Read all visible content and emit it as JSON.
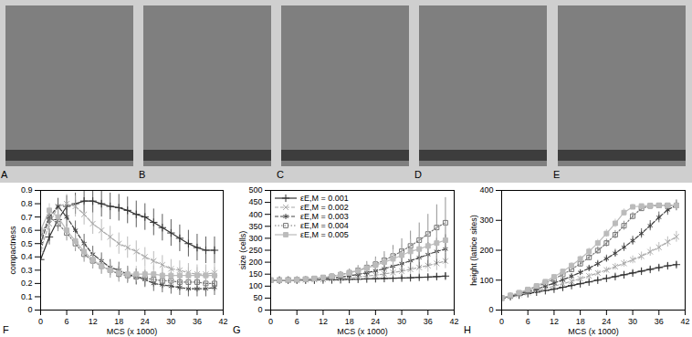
{
  "panels": [
    "A",
    "B",
    "C",
    "D",
    "E"
  ],
  "chart_data": [
    {
      "type": "line",
      "annotations": [
        "F"
      ],
      "xlabel": "MCS (x 1000)",
      "ylabel": "compactness",
      "x": [
        0,
        2,
        4,
        6,
        8,
        10,
        12,
        14,
        16,
        18,
        20,
        22,
        24,
        26,
        28,
        30,
        32,
        34,
        36,
        38,
        40
      ],
      "xlim": [
        0,
        42
      ],
      "xticks": [
        0,
        6,
        12,
        18,
        24,
        30,
        36,
        42
      ],
      "ylim": [
        0,
        0.9
      ],
      "yticks": [
        0,
        0.1,
        0.2,
        0.3,
        0.4,
        0.5,
        0.6,
        0.7,
        0.8,
        0.9
      ],
      "grid": false,
      "series": [
        {
          "name": "εE,M = 0.001",
          "color": "#333333",
          "marker": "plus",
          "line_style": "solid",
          "values": [
            0.38,
            0.55,
            0.68,
            0.78,
            0.8,
            0.82,
            0.82,
            0.8,
            0.78,
            0.77,
            0.75,
            0.72,
            0.7,
            0.66,
            0.62,
            0.58,
            0.54,
            0.5,
            0.47,
            0.45,
            0.45
          ],
          "errors": [
            0.04,
            0.06,
            0.07,
            0.08,
            0.08,
            0.09,
            0.09,
            0.1,
            0.1,
            0.1,
            0.1,
            0.1,
            0.1,
            0.1,
            0.1,
            0.1,
            0.1,
            0.1,
            0.1,
            0.1,
            0.1
          ]
        },
        {
          "name": "εE,M = 0.002",
          "color": "#aaaaaa",
          "marker": "x",
          "line_style": "dashed",
          "values": [
            0.45,
            0.65,
            0.78,
            0.8,
            0.78,
            0.72,
            0.65,
            0.6,
            0.55,
            0.5,
            0.47,
            0.44,
            0.4,
            0.37,
            0.34,
            0.31,
            0.3,
            0.28,
            0.27,
            0.27,
            0.28
          ],
          "errors": [
            0.04,
            0.05,
            0.06,
            0.07,
            0.08,
            0.08,
            0.08,
            0.08,
            0.08,
            0.08,
            0.08,
            0.08,
            0.07,
            0.07,
            0.07,
            0.07,
            0.07,
            0.07,
            0.07,
            0.07,
            0.07
          ]
        },
        {
          "name": "εE,M = 0.003",
          "color": "#444444",
          "marker": "asterisk",
          "line_style": "dashed",
          "values": [
            0.5,
            0.7,
            0.78,
            0.7,
            0.6,
            0.5,
            0.42,
            0.37,
            0.32,
            0.3,
            0.27,
            0.25,
            0.23,
            0.2,
            0.19,
            0.18,
            0.17,
            0.16,
            0.16,
            0.16,
            0.17
          ],
          "errors": [
            0.04,
            0.05,
            0.06,
            0.07,
            0.07,
            0.07,
            0.06,
            0.06,
            0.06,
            0.06,
            0.06,
            0.06,
            0.06,
            0.06,
            0.06,
            0.06,
            0.06,
            0.06,
            0.06,
            0.06,
            0.06
          ]
        },
        {
          "name": "εE,M = 0.004",
          "color": "#777777",
          "marker": "open_square",
          "line_style": "dotted",
          "values": [
            0.55,
            0.7,
            0.65,
            0.58,
            0.5,
            0.42,
            0.37,
            0.33,
            0.3,
            0.27,
            0.26,
            0.25,
            0.24,
            0.23,
            0.22,
            0.22,
            0.21,
            0.21,
            0.21,
            0.2,
            0.2
          ],
          "errors": [
            0.04,
            0.05,
            0.06,
            0.06,
            0.06,
            0.06,
            0.06,
            0.06,
            0.06,
            0.06,
            0.06,
            0.06,
            0.06,
            0.06,
            0.06,
            0.06,
            0.06,
            0.06,
            0.06,
            0.06,
            0.06
          ]
        },
        {
          "name": "εE,M = 0.005",
          "color": "#bbbbbb",
          "marker": "filled_square",
          "line_style": "solid",
          "values": [
            0.6,
            0.75,
            0.7,
            0.6,
            0.52,
            0.44,
            0.38,
            0.33,
            0.3,
            0.28,
            0.27,
            0.27,
            0.27,
            0.27,
            0.26,
            0.26,
            0.26,
            0.26,
            0.26,
            0.26,
            0.26
          ],
          "errors": [
            0.04,
            0.05,
            0.06,
            0.06,
            0.06,
            0.06,
            0.06,
            0.06,
            0.06,
            0.06,
            0.06,
            0.06,
            0.06,
            0.06,
            0.06,
            0.06,
            0.06,
            0.06,
            0.06,
            0.06,
            0.06
          ]
        }
      ]
    },
    {
      "type": "line",
      "annotations": [
        "G"
      ],
      "xlabel": "MCS (x 1000)",
      "ylabel": "size (cells)",
      "legend": "top-left",
      "x": [
        0,
        2,
        4,
        6,
        8,
        10,
        12,
        14,
        16,
        18,
        20,
        22,
        24,
        26,
        28,
        30,
        32,
        34,
        36,
        38,
        40
      ],
      "xlim": [
        0,
        42
      ],
      "xticks": [
        0,
        6,
        12,
        18,
        24,
        30,
        36,
        42
      ],
      "ylim": [
        0,
        500
      ],
      "yticks": [
        0,
        50,
        100,
        150,
        200,
        250,
        300,
        350,
        400,
        450,
        500
      ],
      "grid": false,
      "series": [
        {
          "name": "εE,M = 0.001",
          "color": "#333333",
          "marker": "plus",
          "line_style": "solid",
          "values": [
            125,
            125,
            125,
            125,
            125,
            125,
            126,
            126,
            127,
            128,
            129,
            130,
            131,
            132,
            133,
            134,
            135,
            137,
            138,
            140,
            142
          ],
          "errors": [
            2,
            2,
            2,
            2,
            2,
            3,
            3,
            3,
            4,
            4,
            5,
            5,
            6,
            6,
            7,
            8,
            8,
            9,
            10,
            12,
            14
          ]
        },
        {
          "name": "εE,M = 0.002",
          "color": "#aaaaaa",
          "marker": "x",
          "line_style": "dashed",
          "values": [
            125,
            125,
            125,
            125,
            126,
            127,
            128,
            130,
            132,
            135,
            138,
            142,
            146,
            151,
            157,
            163,
            170,
            178,
            186,
            195,
            205
          ],
          "errors": [
            2,
            2,
            2,
            3,
            3,
            4,
            5,
            6,
            7,
            8,
            10,
            12,
            14,
            16,
            18,
            20,
            22,
            25,
            28,
            30,
            32
          ]
        },
        {
          "name": "εE,M = 0.003",
          "color": "#444444",
          "marker": "asterisk",
          "line_style": "dashed",
          "values": [
            125,
            125,
            125,
            126,
            127,
            129,
            131,
            134,
            138,
            143,
            149,
            156,
            164,
            173,
            183,
            194,
            206,
            219,
            232,
            245,
            255
          ],
          "errors": [
            2,
            2,
            2,
            3,
            4,
            5,
            6,
            8,
            10,
            12,
            15,
            18,
            22,
            26,
            30,
            35,
            40,
            45,
            50,
            55,
            60
          ]
        },
        {
          "name": "εE,M = 0.004",
          "color": "#777777",
          "marker": "open_square",
          "line_style": "dotted",
          "values": [
            125,
            125,
            126,
            127,
            129,
            132,
            136,
            141,
            148,
            156,
            166,
            178,
            192,
            208,
            226,
            246,
            268,
            292,
            318,
            345,
            365
          ],
          "errors": [
            2,
            2,
            3,
            4,
            5,
            6,
            8,
            10,
            13,
            16,
            20,
            25,
            30,
            36,
            44,
            52,
            62,
            72,
            82,
            95,
            105
          ]
        },
        {
          "name": "εE,M = 0.005",
          "color": "#bbbbbb",
          "marker": "filled_square",
          "line_style": "solid",
          "values": [
            125,
            125,
            126,
            127,
            129,
            132,
            136,
            141,
            147,
            155,
            164,
            175,
            187,
            200,
            214,
            229,
            245,
            255,
            268,
            280,
            292
          ],
          "errors": [
            2,
            2,
            3,
            4,
            5,
            6,
            8,
            10,
            12,
            15,
            18,
            22,
            27,
            32,
            38,
            44,
            50,
            56,
            62,
            68,
            75
          ]
        }
      ]
    },
    {
      "type": "line",
      "annotations": [
        "H"
      ],
      "xlabel": "MCS (x 1000)",
      "ylabel": "height (lattice sites)",
      "x": [
        0,
        2,
        4,
        6,
        8,
        10,
        12,
        14,
        16,
        18,
        20,
        22,
        24,
        26,
        28,
        30,
        32,
        34,
        36,
        38,
        40
      ],
      "xlim": [
        0,
        42
      ],
      "xticks": [
        0,
        6,
        12,
        18,
        24,
        30,
        36,
        42
      ],
      "ylim": [
        0,
        400
      ],
      "yticks": [
        0,
        100,
        200,
        300,
        400
      ],
      "grid": false,
      "series": [
        {
          "name": "εE,M = 0.001",
          "color": "#333333",
          "marker": "plus",
          "line_style": "solid",
          "values": [
            40,
            45,
            50,
            55,
            60,
            65,
            70,
            76,
            82,
            88,
            94,
            100,
            106,
            112,
            118,
            124,
            130,
            136,
            142,
            148,
            152
          ],
          "errors": [
            2,
            2,
            3,
            3,
            3,
            4,
            4,
            4,
            5,
            5,
            5,
            6,
            6,
            6,
            7,
            7,
            7,
            8,
            8,
            9,
            9
          ]
        },
        {
          "name": "εE,M = 0.002",
          "color": "#aaaaaa",
          "marker": "x",
          "line_style": "dashed",
          "values": [
            40,
            46,
            52,
            58,
            65,
            72,
            80,
            88,
            96,
            105,
            114,
            124,
            134,
            145,
            156,
            168,
            180,
            195,
            210,
            228,
            245
          ],
          "errors": [
            2,
            3,
            3,
            4,
            4,
            5,
            5,
            6,
            6,
            7,
            8,
            9,
            10,
            11,
            12,
            13,
            14,
            15,
            16,
            17,
            18
          ]
        },
        {
          "name": "εE,M = 0.003",
          "color": "#444444",
          "marker": "asterisk",
          "line_style": "dashed",
          "values": [
            40,
            47,
            54,
            62,
            70,
            80,
            90,
            101,
            113,
            126,
            140,
            155,
            172,
            190,
            210,
            232,
            256,
            282,
            310,
            335,
            350
          ],
          "errors": [
            2,
            3,
            3,
            4,
            5,
            5,
            6,
            7,
            8,
            9,
            10,
            11,
            12,
            13,
            14,
            15,
            16,
            17,
            18,
            18,
            18
          ]
        },
        {
          "name": "εE,M = 0.004",
          "color": "#777777",
          "marker": "open_square",
          "line_style": "dotted",
          "values": [
            40,
            48,
            57,
            67,
            78,
            90,
            104,
            119,
            136,
            155,
            176,
            199,
            224,
            252,
            282,
            314,
            340,
            348,
            350,
            350,
            350
          ],
          "errors": [
            2,
            3,
            3,
            4,
            5,
            6,
            7,
            8,
            9,
            10,
            11,
            12,
            13,
            14,
            15,
            12,
            8,
            5,
            3,
            2,
            2
          ]
        },
        {
          "name": "εE,M = 0.005",
          "color": "#bbbbbb",
          "marker": "filled_square",
          "line_style": "solid",
          "values": [
            40,
            49,
            58,
            69,
            81,
            95,
            111,
            129,
            149,
            171,
            196,
            224,
            256,
            290,
            326,
            345,
            348,
            350,
            350,
            350,
            350
          ],
          "errors": [
            2,
            3,
            3,
            4,
            5,
            6,
            7,
            8,
            9,
            10,
            11,
            12,
            13,
            14,
            12,
            8,
            5,
            3,
            2,
            2,
            2
          ]
        }
      ]
    }
  ]
}
